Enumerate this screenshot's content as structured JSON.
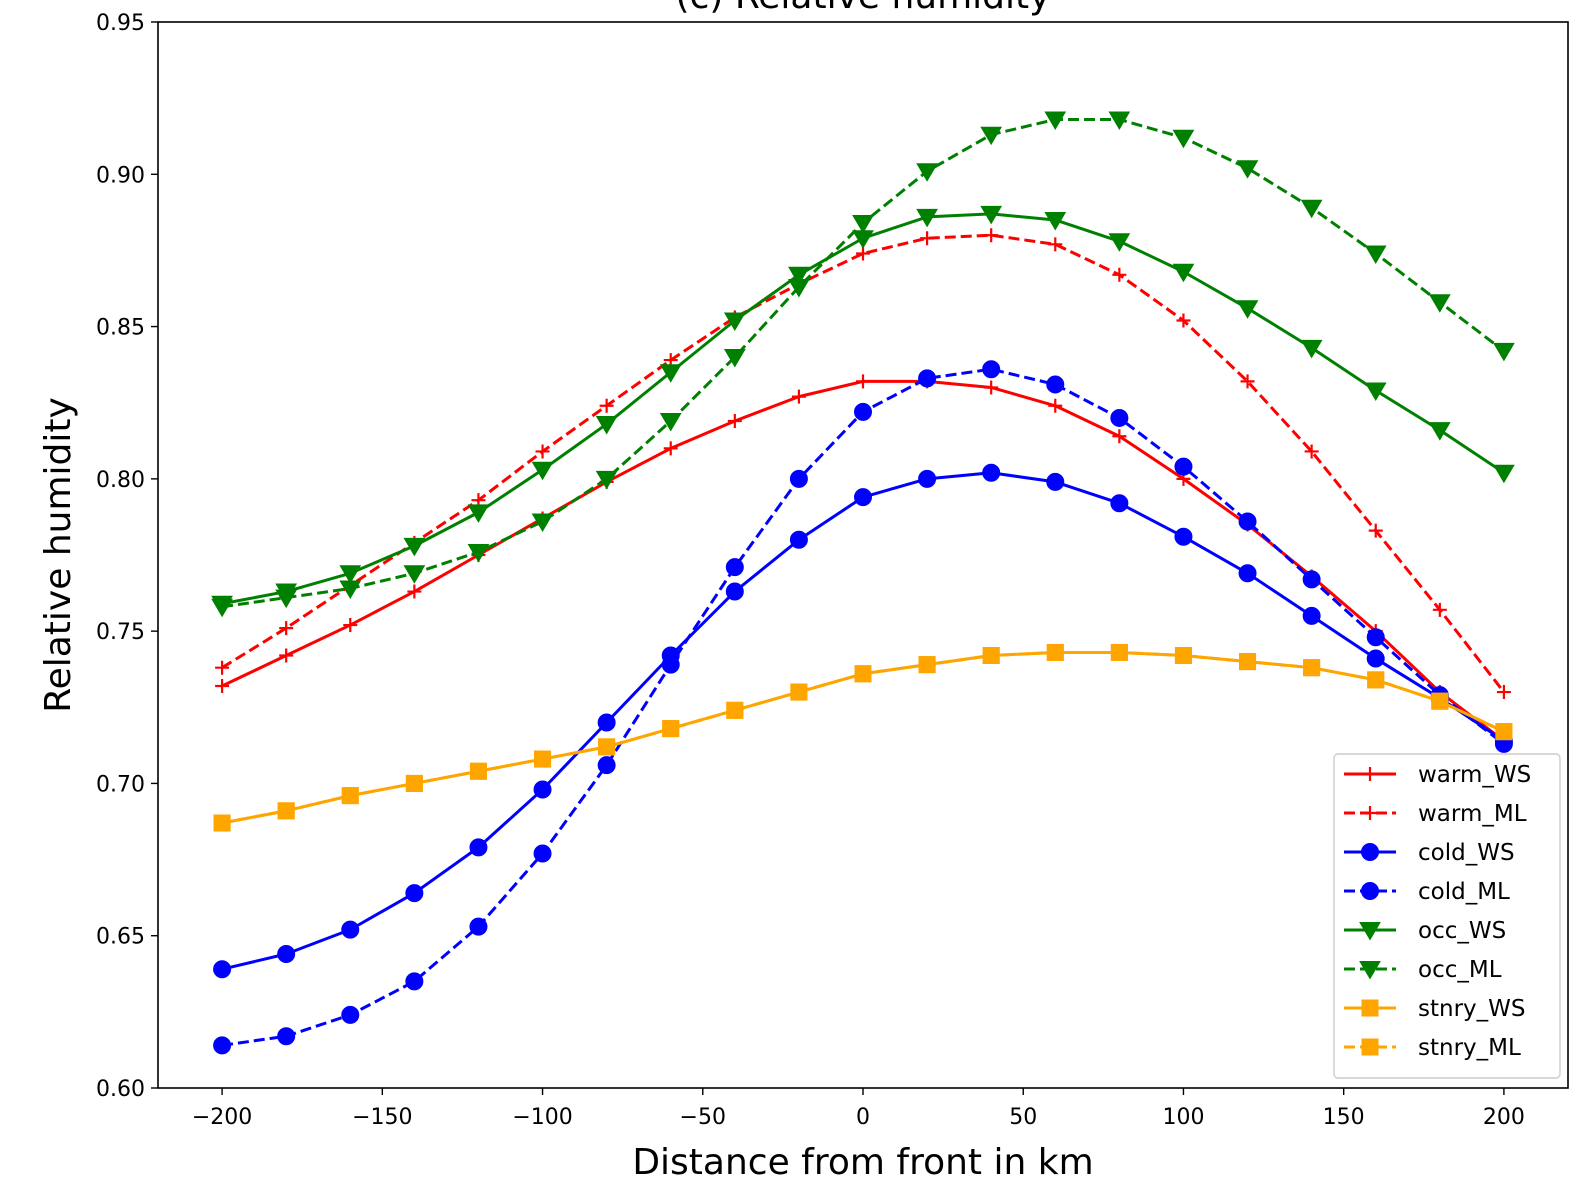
{
  "chart_data": {
    "type": "line",
    "title": "(c) Relative humidity",
    "xlabel": "Distance from front in km",
    "ylabel": "Relative humidity",
    "xlim": [
      -220,
      220
    ],
    "ylim": [
      0.6,
      0.95
    ],
    "grid": false,
    "legend_position": "lower-right",
    "x_ticks": [
      -200,
      -150,
      -100,
      -50,
      0,
      50,
      100,
      150,
      200
    ],
    "x_tick_labels": [
      "−200",
      "−150",
      "−100",
      "−50",
      "0",
      "50",
      "100",
      "150",
      "200"
    ],
    "y_ticks": [
      0.6,
      0.65,
      0.7,
      0.75,
      0.8,
      0.85,
      0.9,
      0.95
    ],
    "y_tick_labels": [
      "0.60",
      "0.65",
      "0.70",
      "0.75",
      "0.80",
      "0.85",
      "0.90",
      "0.95"
    ],
    "x": [
      -200,
      -180,
      -160,
      -140,
      -120,
      -100,
      -80,
      -60,
      -40,
      -20,
      0,
      20,
      40,
      60,
      80,
      100,
      120,
      140,
      160,
      180,
      200
    ],
    "series": [
      {
        "name": "warm_WS",
        "color": "#ff0000",
        "linestyle": "solid",
        "marker": "plus",
        "values": [
          0.732,
          0.742,
          0.752,
          0.763,
          0.775,
          0.787,
          0.799,
          0.81,
          0.819,
          0.827,
          0.832,
          0.832,
          0.83,
          0.824,
          0.814,
          0.8,
          0.785,
          0.768,
          0.75,
          0.73,
          0.714
        ]
      },
      {
        "name": "warm_ML",
        "color": "#ff0000",
        "linestyle": "dashed",
        "marker": "plus",
        "values": [
          0.738,
          0.751,
          0.765,
          0.779,
          0.793,
          0.809,
          0.824,
          0.839,
          0.853,
          0.864,
          0.874,
          0.879,
          0.88,
          0.877,
          0.867,
          0.852,
          0.832,
          0.809,
          0.783,
          0.757,
          0.73
        ]
      },
      {
        "name": "cold_WS",
        "color": "#0000ff",
        "linestyle": "solid",
        "marker": "circle",
        "values": [
          0.639,
          0.644,
          0.652,
          0.664,
          0.679,
          0.698,
          0.72,
          0.742,
          0.763,
          0.78,
          0.794,
          0.8,
          0.802,
          0.799,
          0.792,
          0.781,
          0.769,
          0.755,
          0.741,
          0.728,
          0.714
        ]
      },
      {
        "name": "cold_ML",
        "color": "#0000ff",
        "linestyle": "dashed",
        "marker": "circle",
        "values": [
          0.614,
          0.617,
          0.624,
          0.635,
          0.653,
          0.677,
          0.706,
          0.739,
          0.771,
          0.8,
          0.822,
          0.833,
          0.836,
          0.831,
          0.82,
          0.804,
          0.786,
          0.767,
          0.748,
          0.729,
          0.713
        ]
      },
      {
        "name": "occ_WS",
        "color": "#008000",
        "linestyle": "solid",
        "marker": "triangle-down",
        "values": [
          0.759,
          0.763,
          0.769,
          0.778,
          0.789,
          0.803,
          0.818,
          0.835,
          0.852,
          0.867,
          0.879,
          0.886,
          0.887,
          0.885,
          0.878,
          0.868,
          0.856,
          0.843,
          0.829,
          0.816,
          0.802
        ]
      },
      {
        "name": "occ_ML",
        "color": "#008000",
        "linestyle": "dashed",
        "marker": "triangle-down",
        "values": [
          0.758,
          0.761,
          0.764,
          0.769,
          0.776,
          0.786,
          0.8,
          0.819,
          0.84,
          0.863,
          0.884,
          0.901,
          0.913,
          0.918,
          0.918,
          0.912,
          0.902,
          0.889,
          0.874,
          0.858,
          0.842
        ]
      },
      {
        "name": "stnry_WS",
        "color": "#ffa500",
        "linestyle": "solid",
        "marker": "square",
        "values": [
          0.687,
          0.691,
          0.696,
          0.7,
          0.704,
          0.708,
          0.712,
          0.718,
          0.724,
          0.73,
          0.736,
          0.739,
          0.742,
          0.743,
          0.743,
          0.742,
          0.74,
          0.738,
          0.734,
          0.727,
          0.717
        ]
      },
      {
        "name": "stnry_ML",
        "color": "#ffa500",
        "linestyle": "dashed",
        "marker": "square",
        "values": [
          0.687,
          0.691,
          0.696,
          0.7,
          0.704,
          0.708,
          0.712,
          0.718,
          0.724,
          0.73,
          0.736,
          0.739,
          0.742,
          0.743,
          0.743,
          0.742,
          0.74,
          0.738,
          0.734,
          0.727,
          0.717
        ]
      }
    ]
  }
}
